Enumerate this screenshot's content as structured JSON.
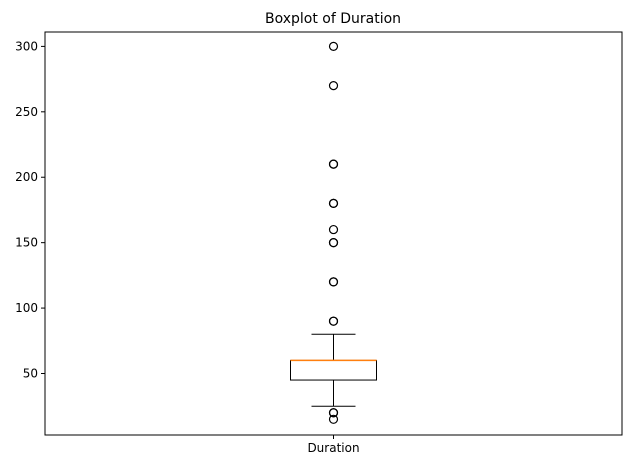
{
  "chart_data": {
    "type": "boxplot",
    "title": "Boxplot of Duration",
    "xlabel": "",
    "ylabel": "",
    "categories": [
      "Duration"
    ],
    "ylim": [
      3,
      311
    ],
    "yticks": [
      50,
      100,
      150,
      200,
      250,
      300
    ],
    "grid": false,
    "box": {
      "whisker_low": 25,
      "q1": 45,
      "median": 60,
      "q3": 60,
      "whisker_high": 80
    },
    "outliers": [
      15,
      20,
      20,
      90,
      90,
      120,
      120,
      150,
      150,
      160,
      180,
      180,
      210,
      210,
      270,
      300
    ],
    "colors": {
      "median": "#ff7f0e",
      "box": "#000000",
      "axes": "#000000"
    }
  }
}
